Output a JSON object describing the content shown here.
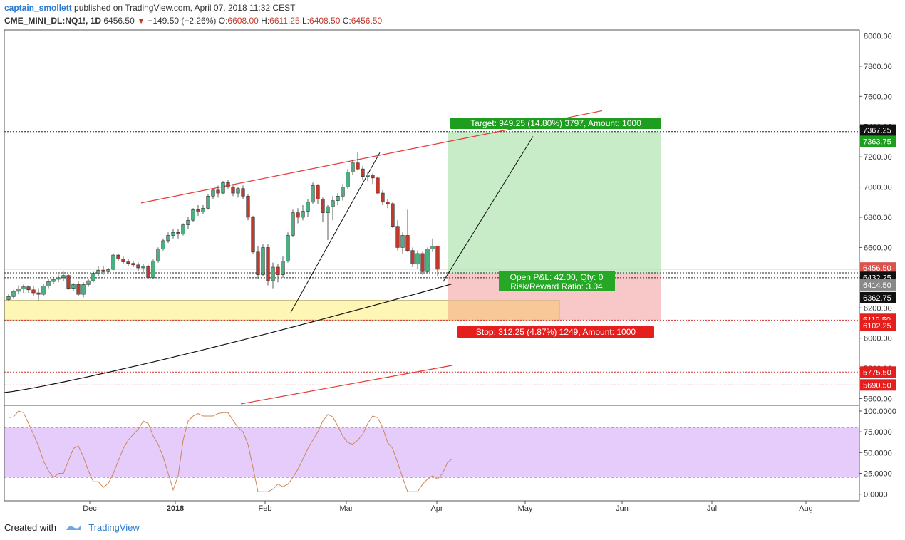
{
  "header": {
    "author": "captain_smollett",
    "published_text": " published on TradingView.com, April 07, 2018 11:32 CEST",
    "symbol": "CME_MINI_DL:NQ1!, 1D",
    "last": "6456.50",
    "change": "−149.50 (−2.26%)",
    "o_label": "O:",
    "o_value": "6608.00",
    "h_label": "H:",
    "h_value": "6611.25",
    "l_label": "L:",
    "l_value": "6408.50",
    "c_label": "C:",
    "c_value": "6456.50"
  },
  "footer": {
    "created_with": "Created with",
    "brand": "TradingView"
  },
  "colors": {
    "bull": "#4caf82",
    "bear": "#c0392b",
    "target_zone": "#c8ecc8",
    "stop_zone": "#f8c8c8",
    "yellow_zone": "#fdf6b4",
    "orange_zone": "#f8c898",
    "rsi_band": "#e6ccfa",
    "rsi_line": "#c9885a",
    "channel_red": "#e53935"
  },
  "chart_data": [
    {
      "type": "candlestick",
      "ylim": [
        5560,
        8040
      ],
      "yticks": [
        5600,
        5800,
        6000,
        6200,
        6400,
        6600,
        6800,
        7000,
        7200,
        7400,
        7600,
        7800,
        8000
      ],
      "ytick_labels": [
        "5600.00",
        "5800.00",
        "6000.00",
        "6200.00",
        "6400.00",
        "6600.00",
        "6800.00",
        "7000.00",
        "7200.00",
        "7400.00",
        "7600.00",
        "7800.00",
        "8000.00"
      ],
      "xtick_labels": [
        "Dec",
        "2018",
        "Feb",
        "Mar",
        "Apr",
        "May",
        "Jun",
        "Jul",
        "Aug"
      ],
      "ohlc": [
        [
          6255,
          6290,
          6245,
          6275
        ],
        [
          6275,
          6320,
          6260,
          6310
        ],
        [
          6310,
          6350,
          6290,
          6325
        ],
        [
          6325,
          6355,
          6300,
          6340
        ],
        [
          6340,
          6350,
          6300,
          6320
        ],
        [
          6320,
          6345,
          6280,
          6300
        ],
        [
          6300,
          6330,
          6250,
          6290
        ],
        [
          6290,
          6360,
          6280,
          6345
        ],
        [
          6345,
          6390,
          6330,
          6375
        ],
        [
          6375,
          6405,
          6360,
          6390
        ],
        [
          6390,
          6420,
          6370,
          6400
        ],
        [
          6400,
          6440,
          6380,
          6415
        ],
        [
          6415,
          6425,
          6320,
          6330
        ],
        [
          6330,
          6365,
          6310,
          6355
        ],
        [
          6355,
          6375,
          6280,
          6290
        ],
        [
          6290,
          6370,
          6270,
          6355
        ],
        [
          6355,
          6395,
          6340,
          6380
        ],
        [
          6380,
          6440,
          6370,
          6430
        ],
        [
          6430,
          6475,
          6410,
          6450
        ],
        [
          6450,
          6480,
          6420,
          6440
        ],
        [
          6440,
          6465,
          6425,
          6455
        ],
        [
          6455,
          6560,
          6450,
          6550
        ],
        [
          6550,
          6555,
          6510,
          6525
        ],
        [
          6525,
          6540,
          6490,
          6505
        ],
        [
          6505,
          6525,
          6480,
          6495
        ],
        [
          6495,
          6510,
          6470,
          6485
        ],
        [
          6485,
          6500,
          6445,
          6465
        ],
        [
          6465,
          6490,
          6430,
          6475
        ],
        [
          6475,
          6485,
          6390,
          6400
        ],
        [
          6400,
          6520,
          6390,
          6510
        ],
        [
          6510,
          6600,
          6500,
          6590
        ],
        [
          6590,
          6660,
          6580,
          6645
        ],
        [
          6645,
          6700,
          6630,
          6680
        ],
        [
          6680,
          6720,
          6660,
          6700
        ],
        [
          6700,
          6720,
          6660,
          6690
        ],
        [
          6690,
          6760,
          6680,
          6750
        ],
        [
          6750,
          6800,
          6720,
          6780
        ],
        [
          6780,
          6860,
          6770,
          6850
        ],
        [
          6850,
          6880,
          6810,
          6835
        ],
        [
          6835,
          6880,
          6820,
          6860
        ],
        [
          6860,
          6950,
          6850,
          6940
        ],
        [
          6940,
          6990,
          6920,
          6980
        ],
        [
          6980,
          7010,
          6930,
          6960
        ],
        [
          6960,
          7040,
          6950,
          7030
        ],
        [
          7030,
          7050,
          6990,
          7000
        ],
        [
          7000,
          7020,
          6940,
          6960
        ],
        [
          6960,
          7000,
          6930,
          6990
        ],
        [
          6990,
          7010,
          6920,
          6940
        ],
        [
          6940,
          6950,
          6780,
          6800
        ],
        [
          6800,
          6810,
          6560,
          6570
        ],
        [
          6570,
          6610,
          6390,
          6420
        ],
        [
          6420,
          6620,
          6410,
          6600
        ],
        [
          6600,
          6620,
          6350,
          6380
        ],
        [
          6380,
          6500,
          6330,
          6470
        ],
        [
          6470,
          6490,
          6370,
          6420
        ],
        [
          6420,
          6540,
          6400,
          6510
        ],
        [
          6510,
          6700,
          6500,
          6680
        ],
        [
          6680,
          6850,
          6670,
          6830
        ],
        [
          6830,
          6860,
          6760,
          6800
        ],
        [
          6800,
          6880,
          6780,
          6840
        ],
        [
          6840,
          6920,
          6800,
          6900
        ],
        [
          6900,
          7030,
          6890,
          7010
        ],
        [
          7010,
          7020,
          6890,
          6920
        ],
        [
          6920,
          6930,
          6770,
          6830
        ],
        [
          6830,
          6880,
          6650,
          6870
        ],
        [
          6870,
          6940,
          6780,
          6910
        ],
        [
          6910,
          6960,
          6880,
          6940
        ],
        [
          6940,
          7020,
          6910,
          7000
        ],
        [
          7000,
          7120,
          6990,
          7100
        ],
        [
          7100,
          7180,
          7080,
          7160
        ],
        [
          7160,
          7230,
          7110,
          7120
        ],
        [
          7120,
          7140,
          7050,
          7070
        ],
        [
          7070,
          7100,
          7040,
          7080
        ],
        [
          7080,
          7090,
          7020,
          7060
        ],
        [
          7060,
          7070,
          6950,
          6960
        ],
        [
          6960,
          6980,
          6880,
          6900
        ],
        [
          6900,
          6920,
          6860,
          6890
        ],
        [
          6890,
          6900,
          6730,
          6740
        ],
        [
          6740,
          6780,
          6580,
          6600
        ],
        [
          6600,
          6700,
          6560,
          6680
        ],
        [
          6680,
          6850,
          6570,
          6580
        ],
        [
          6580,
          6600,
          6470,
          6490
        ],
        [
          6490,
          6580,
          6460,
          6560
        ],
        [
          6560,
          6570,
          6420,
          6440
        ],
        [
          6440,
          6600,
          6430,
          6590
        ],
        [
          6590,
          6660,
          6570,
          6608
        ],
        [
          6608,
          6611,
          6408,
          6456
        ]
      ]
    },
    {
      "type": "line",
      "name": "RSI",
      "ylim": [
        -8,
        106
      ],
      "yticks": [
        0,
        25,
        50,
        75,
        100
      ],
      "ytick_labels": [
        "0.0000",
        "25.0000",
        "50.0000",
        "75.0000",
        "100.0000"
      ],
      "band": [
        20,
        80
      ],
      "values": [
        92,
        93,
        100,
        98,
        85,
        72,
        58,
        40,
        28,
        20,
        25,
        25,
        40,
        55,
        58,
        45,
        28,
        15,
        15,
        8,
        13,
        25,
        40,
        55,
        65,
        72,
        78,
        88,
        85,
        70,
        60,
        45,
        25,
        5,
        22,
        65,
        88,
        94,
        97,
        94,
        94,
        94,
        97,
        98,
        98,
        89,
        80,
        75,
        60,
        32,
        3,
        3,
        3,
        6,
        12,
        9,
        12,
        20,
        30,
        42,
        55,
        65,
        75,
        88,
        96,
        93,
        82,
        70,
        62,
        60,
        65,
        72,
        85,
        94,
        92,
        80,
        62,
        55,
        38,
        20,
        3,
        3,
        3,
        12,
        18,
        22,
        18,
        25,
        38,
        43
      ]
    }
  ],
  "levels": {
    "top_dotted": "7367.25",
    "target_badge": "7363.75",
    "price_badge": "6456.50",
    "entry_black": "6432.25",
    "gray_badge": "6414.50",
    "ma_badge": "6362.75",
    "stop1": "6119.50",
    "stop2": "6102.25",
    "red_dotted1": "5775.50",
    "red_dotted2": "5690.50"
  },
  "labels": {
    "target": "Target: 949.25 (14.80%) 3797, Amount: 1000",
    "open_pl": "Open P&L: 42.00, Qty: 0",
    "risk_reward": "Risk/Reward Ratio: 3.04",
    "stop": "Stop: 312.25 (4.87%) 1249, Amount: 1000"
  }
}
